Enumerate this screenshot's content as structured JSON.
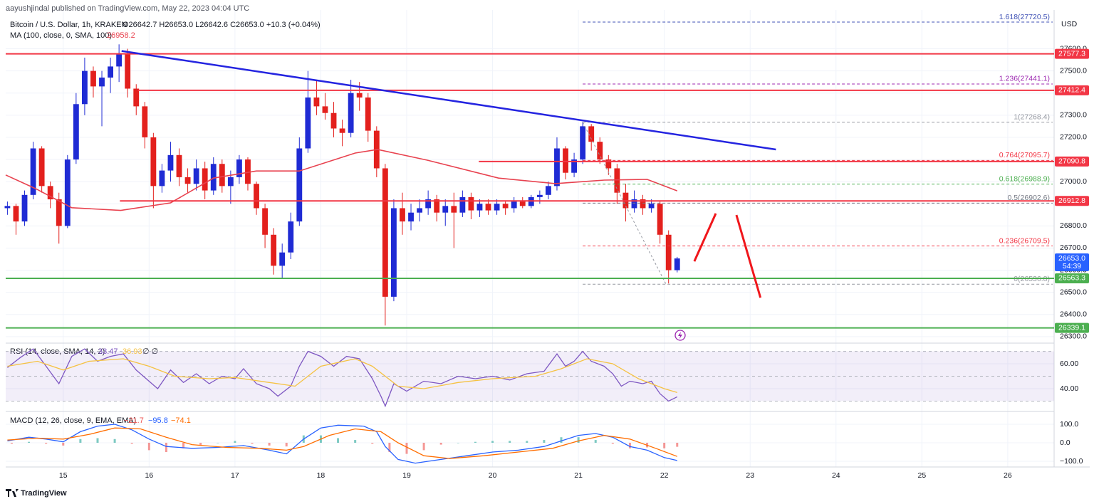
{
  "header": {
    "published": "aayushjindal published on TradingView.com, May 22, 2023 04:04 UTC",
    "footer": "TradingView"
  },
  "chart_data": [
    {
      "type": "candlestick",
      "title": "Bitcoin / U.S. Dollar, 1h, KRAKEN",
      "ohlc_text": "O26642.7 H26653.0 L26642.6 C26653.0 +10.3 (+0.04%)",
      "currency": "USD",
      "x": [
        14.35,
        14.45,
        14.55,
        14.65,
        14.75,
        14.85,
        14.95,
        15.05,
        15.15,
        15.25,
        15.35,
        15.45,
        15.55,
        15.65,
        15.75,
        15.85,
        15.95,
        16.05,
        16.15,
        16.25,
        16.35,
        16.45,
        16.55,
        16.65,
        16.75,
        16.85,
        16.95,
        17.05,
        17.15,
        17.25,
        17.35,
        17.45,
        17.55,
        17.65,
        17.75,
        17.85,
        17.95,
        18.05,
        18.15,
        18.25,
        18.35,
        18.45,
        18.55,
        18.65,
        18.75,
        18.85,
        18.95,
        19.05,
        19.15,
        19.25,
        19.35,
        19.45,
        19.55,
        19.65,
        19.75,
        19.85,
        19.95,
        20.05,
        20.15,
        20.25,
        20.35,
        20.45,
        20.55,
        20.65,
        20.75,
        20.85,
        20.95,
        21.05,
        21.15,
        21.25,
        21.35,
        21.45,
        21.55,
        21.65,
        21.75,
        21.85,
        21.95,
        22.05,
        22.15
      ],
      "open": [
        26880,
        26890,
        26820,
        26940,
        27150,
        26980,
        26920,
        26800,
        27100,
        27350,
        27500,
        27430,
        27470,
        27520,
        27580,
        27420,
        27340,
        27200,
        26980,
        27050,
        27120,
        27020,
        26990,
        27060,
        26960,
        27080,
        26980,
        27020,
        27100,
        26990,
        26880,
        26760,
        26620,
        26680,
        26820,
        27150,
        27380,
        27340,
        27310,
        27240,
        27220,
        27400,
        27380,
        27230,
        27060,
        26480,
        26880,
        26820,
        26860,
        26880,
        26920,
        26860,
        26890,
        26860,
        26930,
        26870,
        26900,
        26870,
        26900,
        26880,
        26910,
        26890,
        26930,
        26940,
        26980,
        27150,
        27040,
        27100,
        27250,
        27180,
        27100,
        27060,
        26950,
        26880,
        26920,
        26880,
        26900,
        26760,
        26600
      ],
      "high": [
        26910,
        26900,
        26960,
        27180,
        27160,
        27000,
        26950,
        27120,
        27400,
        27560,
        27520,
        27500,
        27560,
        27620,
        27600,
        27440,
        27360,
        27220,
        27080,
        27180,
        27150,
        27060,
        27100,
        27090,
        27110,
        27100,
        27050,
        27120,
        27110,
        27000,
        26900,
        26790,
        26720,
        26860,
        27200,
        27500,
        27460,
        27400,
        27360,
        27280,
        27460,
        27450,
        27400,
        27250,
        27080,
        26920,
        26950,
        26900,
        26920,
        26960,
        26940,
        26920,
        26950,
        26960,
        26950,
        26920,
        26920,
        26920,
        26910,
        26930,
        26930,
        26940,
        26960,
        27000,
        27200,
        27160,
        27130,
        27270,
        27260,
        27200,
        27120,
        27080,
        26990,
        26960,
        26940,
        26920,
        26910,
        26780,
        26660
      ],
      "low": [
        26850,
        26760,
        26800,
        26920,
        26950,
        26880,
        26720,
        26790,
        27080,
        27300,
        27380,
        27250,
        27400,
        27450,
        27380,
        27300,
        27150,
        26880,
        26950,
        27000,
        26980,
        26950,
        26960,
        26920,
        26940,
        26950,
        26900,
        26990,
        26960,
        26850,
        26700,
        26580,
        26560,
        26650,
        26800,
        27130,
        27300,
        27280,
        27200,
        27160,
        27200,
        27320,
        27180,
        27020,
        26350,
        26460,
        26760,
        26780,
        26820,
        26850,
        26820,
        26800,
        26700,
        26840,
        26830,
        26840,
        26850,
        26850,
        26850,
        26860,
        26880,
        26880,
        26900,
        26920,
        26960,
        27010,
        27020,
        27080,
        27140,
        27080,
        27030,
        26900,
        26820,
        26860,
        26850,
        26860,
        26720,
        26540,
        26590
      ],
      "close": [
        26890,
        26820,
        26940,
        27150,
        26980,
        26920,
        26800,
        27100,
        27350,
        27500,
        27430,
        27470,
        27520,
        27580,
        27420,
        27340,
        27200,
        26980,
        27050,
        27120,
        27020,
        26990,
        27060,
        26960,
        27080,
        26980,
        27020,
        27100,
        26990,
        26880,
        26760,
        26620,
        26680,
        26820,
        27150,
        27380,
        27340,
        27310,
        27240,
        27220,
        27400,
        27380,
        27230,
        27060,
        26480,
        26880,
        26820,
        26860,
        26880,
        26920,
        26860,
        26890,
        26860,
        26930,
        26870,
        26900,
        26870,
        26900,
        26880,
        26910,
        26890,
        26930,
        26940,
        26980,
        27150,
        27040,
        27100,
        27250,
        27180,
        27100,
        27060,
        26950,
        26880,
        26920,
        26880,
        26900,
        26760,
        26600,
        26653
      ],
      "up_color": "#1f2bd4",
      "down_color": "#e3201d",
      "xlim": [
        14.33,
        26.54
      ],
      "xticks": [
        15,
        16,
        17,
        18,
        19,
        20,
        21,
        22,
        23,
        24,
        25,
        26
      ],
      "ylim": [
        26277,
        27756
      ],
      "yticks": [
        {
          "value": 26300,
          "label": "26300.0"
        },
        {
          "value": 26400,
          "label": "26400.0"
        },
        {
          "value": 26500,
          "label": "26500.0"
        },
        {
          "value": 26600,
          "label": "26600.0"
        },
        {
          "value": 26700,
          "label": "26700.0"
        },
        {
          "value": 26800,
          "label": "26800.0"
        },
        {
          "value": 26900,
          "label": "26900.0"
        },
        {
          "value": 27000,
          "label": "27000.0"
        },
        {
          "value": 27100,
          "label": "27100.0"
        },
        {
          "value": 27200,
          "label": "27200.0"
        },
        {
          "value": 27300,
          "label": "27300.0"
        },
        {
          "value": 27400,
          "label": "27400.0"
        },
        {
          "value": 27500,
          "label": "27500.0"
        },
        {
          "value": 27600,
          "label": "27600.0"
        }
      ],
      "grid": true,
      "series": [
        {
          "name": "MA (100, close, 0, SMA, 100)",
          "color": "#e8424f",
          "x": [
            14.33,
            14.68,
            15.1,
            15.67,
            16.25,
            16.75,
            17.25,
            17.75,
            18.4,
            18.66,
            19.24,
            20.07,
            20.73,
            21.3,
            21.8,
            22.15
          ],
          "values": [
            27030,
            26968,
            26882,
            26870,
            26904,
            27016,
            27048,
            27048,
            27129,
            27145,
            27097,
            27016,
            26991,
            27007,
            27010,
            26958.2
          ]
        }
      ],
      "levels": [
        {
          "value": 27577.3,
          "color": "#f23645"
        },
        {
          "value": 27412.4,
          "color": "#f23645",
          "start": 15.87
        },
        {
          "value": 27090.8,
          "color": "#f23645",
          "start": 19.84
        },
        {
          "value": 26912.8,
          "color": "#f23645",
          "start": 15.66
        },
        {
          "value": 26563.3,
          "color": "#4caf50"
        },
        {
          "value": 26339.1,
          "color": "#4caf50"
        }
      ],
      "current": {
        "value": 26653,
        "label": "26653.0",
        "countdown": "54:39",
        "color": "#2962ff"
      },
      "fib": {
        "start": 21.05,
        "anchor": {
          "x": [
            21.05,
            22.02
          ],
          "y": [
            27268.4,
            26536.8
          ]
        },
        "levels": [
          {
            "value": 27720.5,
            "label": "1.618(27720.5)",
            "color": "#3f51b5"
          },
          {
            "value": 27441.1,
            "label": "1.236(27441.1)",
            "color": "#9c27b0"
          },
          {
            "value": 27268.4,
            "label": "1(27268.4)",
            "color": "#9598a1"
          },
          {
            "value": 27095.7,
            "label": "0.764(27095.7)",
            "color": "#f23645"
          },
          {
            "value": 26988.9,
            "label": "0.618(26988.9)",
            "color": "#4caf50"
          },
          {
            "value": 26902.6,
            "label": "0.5(26902.6)",
            "color": "#787b86"
          },
          {
            "value": 26709.5,
            "label": "0.236(26709.5)",
            "color": "#f23645"
          },
          {
            "value": 26536.8,
            "label": "0(26536.8)",
            "color": "#9598a1"
          }
        ]
      },
      "trendline": {
        "x": [
          15.68,
          23.3
        ],
        "y": [
          27590,
          27145
        ],
        "color": "#2424e0"
      },
      "drawings": [
        {
          "x": [
            22.35,
            22.6
          ],
          "y": [
            26640,
            26856
          ],
          "color": "#f0161b"
        },
        {
          "x": [
            22.84,
            23.12
          ],
          "y": [
            26849,
            26476
          ],
          "color": "#f0161b"
        }
      ]
    },
    {
      "type": "line",
      "title": "RSI (14, close, SMA, 14, 2)",
      "status": "∅ ∅",
      "ylim": [
        23.4,
        74.9
      ],
      "yticks": [
        {
          "value": 40,
          "label": "40.00"
        },
        {
          "value": 60,
          "label": "60.00"
        }
      ],
      "band": [
        30,
        70
      ],
      "midline": 50,
      "band_color": "#7e57c2",
      "series": [
        {
          "color": "#7e57c2",
          "x": [
            14.35,
            14.5,
            14.65,
            14.8,
            14.95,
            15.1,
            15.25,
            15.4,
            15.55,
            15.7,
            15.85,
            16.0,
            16.1,
            16.25,
            16.4,
            16.55,
            16.7,
            16.85,
            17.0,
            17.1,
            17.25,
            17.4,
            17.5,
            17.65,
            17.75,
            17.85,
            18.0,
            18.15,
            18.3,
            18.45,
            18.6,
            18.7,
            18.75,
            18.85,
            19.0,
            19.2,
            19.4,
            19.6,
            19.8,
            20.0,
            20.2,
            20.4,
            20.6,
            20.75,
            20.85,
            20.95,
            21.05,
            21.15,
            21.3,
            21.4,
            21.5,
            21.6,
            21.75,
            21.85,
            21.95,
            22.05,
            22.15
          ],
          "values": [
            57,
            65,
            72,
            58,
            44,
            66,
            72,
            62,
            66,
            68,
            55,
            46,
            40,
            55,
            45,
            52,
            44,
            50,
            48,
            56,
            44,
            40,
            34,
            42,
            58,
            70,
            66,
            58,
            66,
            64,
            48,
            34,
            26,
            44,
            38,
            46,
            44,
            50,
            48,
            50,
            47,
            52,
            54,
            68,
            58,
            62,
            70,
            62,
            58,
            52,
            42,
            46,
            44,
            46,
            36,
            30,
            33.47
          ]
        },
        {
          "color": "#f5c242",
          "x": [
            14.35,
            14.7,
            15.0,
            15.3,
            15.7,
            16.0,
            16.3,
            16.7,
            17.0,
            17.4,
            17.7,
            18.0,
            18.4,
            18.6,
            18.9,
            19.2,
            19.6,
            20.0,
            20.5,
            20.8,
            21.1,
            21.4,
            21.7,
            22.0,
            22.15
          ],
          "values": [
            58,
            62,
            55,
            62,
            64,
            58,
            50,
            48,
            49,
            45,
            42,
            58,
            64,
            58,
            42,
            40,
            45,
            48,
            50,
            56,
            64,
            60,
            48,
            40,
            36.93
          ]
        }
      ]
    },
    {
      "type": "macd",
      "title": "MACD (12, 26, close, 9, EMA, EMA)",
      "value_texts": [
        "−21.7",
        "−95.8",
        "−74.1"
      ],
      "ylim": [
        -127,
        161.5
      ],
      "yticks": [
        {
          "value": -100,
          "label": "−100.0"
        },
        {
          "value": 0,
          "label": "0.0"
        },
        {
          "value": 100,
          "label": "100.0"
        }
      ],
      "series": [
        {
          "color": "#2962ff",
          "x": [
            14.35,
            14.6,
            14.8,
            15.0,
            15.2,
            15.4,
            15.6,
            15.8,
            16.0,
            16.2,
            16.5,
            16.8,
            17.1,
            17.4,
            17.6,
            17.8,
            18.0,
            18.2,
            18.5,
            18.65,
            18.75,
            18.9,
            19.1,
            19.4,
            19.7,
            20.0,
            20.3,
            20.6,
            20.8,
            21.0,
            21.2,
            21.4,
            21.6,
            21.8,
            22.0,
            22.15
          ],
          "values": [
            10,
            30,
            20,
            5,
            60,
            90,
            100,
            70,
            20,
            -20,
            -30,
            -25,
            -15,
            -40,
            -60,
            20,
            80,
            95,
            90,
            60,
            -20,
            -90,
            -110,
            -90,
            -70,
            -50,
            -40,
            -20,
            10,
            40,
            50,
            30,
            -20,
            -40,
            -80,
            -95.8
          ]
        },
        {
          "color": "#ff6d00",
          "x": [
            14.35,
            14.7,
            15.0,
            15.3,
            15.6,
            15.9,
            16.2,
            16.5,
            16.9,
            17.3,
            17.6,
            17.8,
            18.1,
            18.4,
            18.7,
            18.9,
            19.2,
            19.5,
            19.9,
            20.3,
            20.7,
            21.0,
            21.3,
            21.6,
            21.9,
            22.15
          ],
          "values": [
            15,
            25,
            20,
            45,
            80,
            75,
            30,
            -10,
            -25,
            -30,
            -40,
            -20,
            40,
            75,
            60,
            0,
            -70,
            -85,
            -70,
            -50,
            -30,
            10,
            40,
            20,
            -30,
            -74.1
          ]
        }
      ],
      "histogram": {
        "pos_color": "#26a69a",
        "neg_color": "#ef5350",
        "x": [
          14.4,
          14.6,
          14.8,
          15.0,
          15.2,
          15.4,
          15.6,
          15.8,
          16.0,
          16.2,
          16.4,
          16.6,
          16.8,
          17.0,
          17.2,
          17.4,
          17.6,
          17.8,
          18.0,
          18.2,
          18.4,
          18.6,
          18.8,
          19.0,
          19.2,
          19.4,
          19.6,
          19.8,
          20.0,
          20.2,
          20.4,
          20.6,
          20.8,
          21.0,
          21.2,
          21.4,
          21.6,
          21.8,
          22.0,
          22.15
        ],
        "values": [
          -5,
          5,
          -5,
          -15,
          20,
          25,
          20,
          -5,
          -40,
          -50,
          -30,
          -15,
          0,
          10,
          -5,
          -15,
          -20,
          40,
          40,
          25,
          15,
          -5,
          -50,
          -60,
          -40,
          -10,
          0,
          5,
          10,
          10,
          10,
          15,
          30,
          30,
          15,
          -5,
          -30,
          -25,
          -30,
          -21.7
        ]
      }
    }
  ]
}
